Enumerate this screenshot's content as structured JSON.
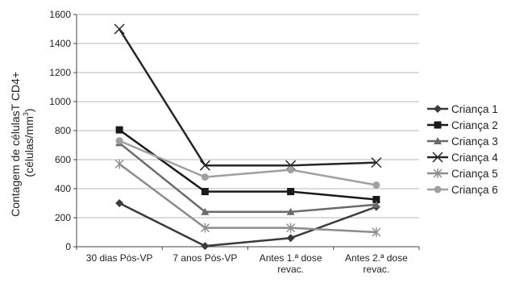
{
  "chart_data": {
    "type": "line",
    "title": "",
    "xlabel": "",
    "ylabel_line1": "Contagem de célulasT CD4+",
    "ylabel_line2_prefix": "(células/mm",
    "ylabel_line2_sup": "3",
    "ylabel_line2_suffix": ")",
    "categories": [
      [
        "30 dias Pós-VP"
      ],
      [
        "7 anos Pós-VP"
      ],
      [
        "Antes 1.ª dose",
        "revac."
      ],
      [
        "Antes 2.ª dose",
        "revac."
      ]
    ],
    "ylim": [
      0,
      1600
    ],
    "yticks": [
      0,
      200,
      400,
      600,
      800,
      1000,
      1200,
      1400,
      1600
    ],
    "grid": true,
    "legend_position": "right",
    "series": [
      {
        "name": "Criança 1",
        "values": [
          300,
          5,
          60,
          275
        ],
        "color": "#3a3a3a",
        "marker": "diamond"
      },
      {
        "name": "Criança 2",
        "values": [
          805,
          380,
          380,
          325
        ],
        "color": "#1a1a1a",
        "marker": "square"
      },
      {
        "name": "Criança 3",
        "values": [
          715,
          240,
          240,
          290
        ],
        "color": "#6b6b6b",
        "marker": "triangle"
      },
      {
        "name": "Criança 4",
        "values": [
          1500,
          560,
          560,
          580
        ],
        "color": "#262626",
        "marker": "x"
      },
      {
        "name": "Criança 5",
        "values": [
          570,
          130,
          130,
          100
        ],
        "color": "#8c8c8c",
        "marker": "asterisk"
      },
      {
        "name": "Criança 6",
        "values": [
          730,
          480,
          530,
          425
        ],
        "color": "#a0a0a0",
        "marker": "circle"
      }
    ]
  }
}
